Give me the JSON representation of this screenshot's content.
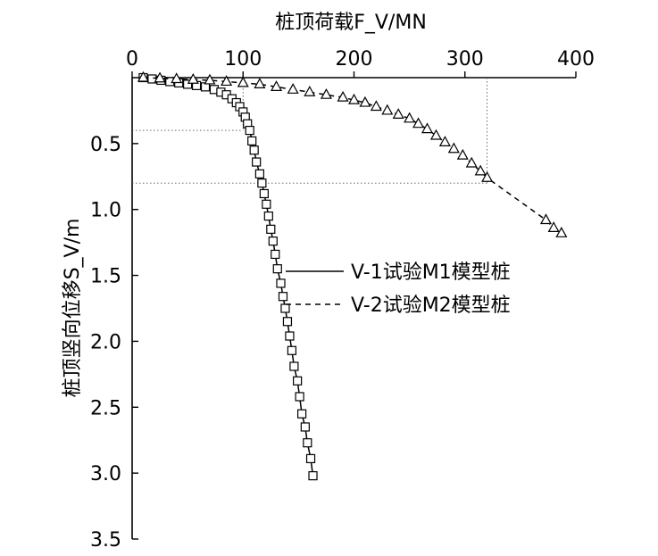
{
  "chart_data": {
    "type": "line",
    "xlabel": "桩顶荷载F_V/MN",
    "ylabel": "桩顶竖向位移S_V/m",
    "x_axis_position": "top",
    "y_inverted": true,
    "xlim": [
      0,
      400
    ],
    "ylim": [
      0,
      3.5
    ],
    "x_ticks": [
      "0",
      "100",
      "200",
      "300",
      "400"
    ],
    "y_ticks": [
      "0.5",
      "1.0",
      "1.5",
      "2.0",
      "2.5",
      "3.0",
      "3.5"
    ],
    "legend_placement": "center-right",
    "grid": false,
    "series": [
      {
        "name": "V-1试验M1模型桩",
        "line_style": "solid",
        "marker": "square",
        "points": [
          [
            10,
            0.0
          ],
          [
            18,
            0.01
          ],
          [
            26,
            0.02
          ],
          [
            34,
            0.03
          ],
          [
            42,
            0.04
          ],
          [
            50,
            0.05
          ],
          [
            58,
            0.06
          ],
          [
            66,
            0.07
          ],
          [
            74,
            0.09
          ],
          [
            80,
            0.11
          ],
          [
            85,
            0.13
          ],
          [
            90,
            0.16
          ],
          [
            94,
            0.19
          ],
          [
            97,
            0.22
          ],
          [
            100,
            0.26
          ],
          [
            102,
            0.3
          ],
          [
            104,
            0.35
          ],
          [
            106,
            0.4
          ],
          [
            108,
            0.48
          ],
          [
            110,
            0.55
          ],
          [
            112,
            0.64
          ],
          [
            115,
            0.73
          ],
          [
            117,
            0.8
          ],
          [
            119,
            0.88
          ],
          [
            121,
            0.96
          ],
          [
            123,
            1.05
          ],
          [
            125,
            1.15
          ],
          [
            127,
            1.24
          ],
          [
            129,
            1.34
          ],
          [
            131,
            1.45
          ],
          [
            134,
            1.56
          ],
          [
            136,
            1.66
          ],
          [
            138,
            1.75
          ],
          [
            140,
            1.85
          ],
          [
            142,
            1.96
          ],
          [
            144,
            2.07
          ],
          [
            146,
            2.19
          ],
          [
            149,
            2.3
          ],
          [
            151,
            2.42
          ],
          [
            153,
            2.55
          ],
          [
            156,
            2.65
          ],
          [
            158,
            2.77
          ],
          [
            161,
            2.89
          ],
          [
            163,
            3.02
          ]
        ]
      },
      {
        "name": "V-2试验M2模型桩",
        "line_style": "dashed",
        "marker": "triangle",
        "points": [
          [
            10,
            0.0
          ],
          [
            25,
            0.005
          ],
          [
            40,
            0.01
          ],
          [
            55,
            0.015
          ],
          [
            70,
            0.02
          ],
          [
            85,
            0.03
          ],
          [
            100,
            0.04
          ],
          [
            115,
            0.05
          ],
          [
            130,
            0.07
          ],
          [
            145,
            0.09
          ],
          [
            160,
            0.11
          ],
          [
            175,
            0.13
          ],
          [
            190,
            0.15
          ],
          [
            200,
            0.17
          ],
          [
            210,
            0.19
          ],
          [
            220,
            0.22
          ],
          [
            230,
            0.25
          ],
          [
            240,
            0.28
          ],
          [
            250,
            0.31
          ],
          [
            258,
            0.35
          ],
          [
            266,
            0.39
          ],
          [
            274,
            0.44
          ],
          [
            282,
            0.49
          ],
          [
            290,
            0.54
          ],
          [
            298,
            0.59
          ],
          [
            306,
            0.65
          ],
          [
            314,
            0.71
          ],
          [
            320,
            0.76
          ],
          [
            373,
            1.08
          ],
          [
            380,
            1.14
          ],
          [
            387,
            1.18
          ]
        ]
      }
    ],
    "reference_lines": {
      "vertical_at_x": [
        100,
        320
      ],
      "horizontal_at_y": [
        0.4,
        0.8
      ]
    }
  }
}
